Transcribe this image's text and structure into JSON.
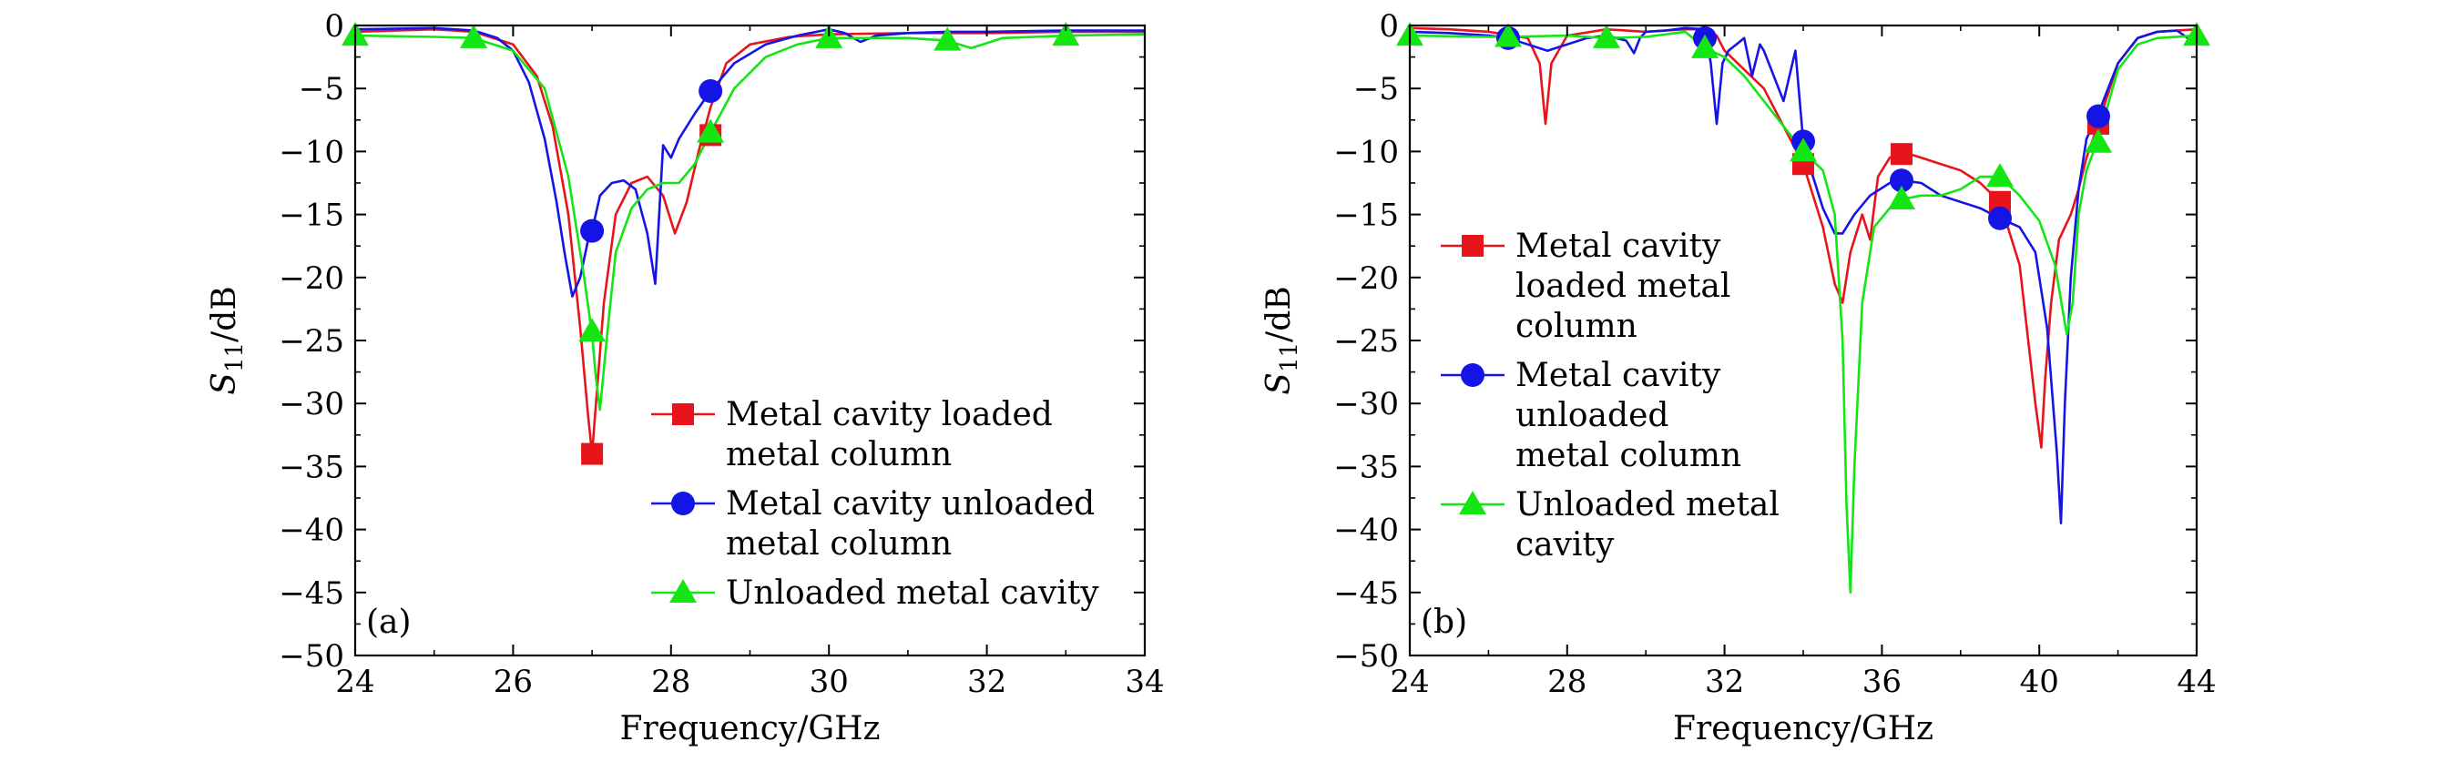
{
  "chart_data": [
    {
      "type": "line",
      "panel_label": "(a)",
      "xlabel": "Frequency/GHz",
      "ylabel": "S11/dB",
      "ylabel_main": "S",
      "ylabel_sub": "11",
      "ylabel_unit": "/dB",
      "xlim": [
        24,
        34
      ],
      "ylim": [
        -50,
        0
      ],
      "xticks": [
        24,
        26,
        28,
        30,
        32,
        34
      ],
      "yticks": [
        0,
        -5,
        -10,
        -15,
        -20,
        -25,
        -30,
        -35,
        -40,
        -45,
        -50
      ],
      "xtick_labels": [
        "24",
        "26",
        "28",
        "30",
        "32",
        "34"
      ],
      "ytick_labels": [
        "0",
        "−5",
        "−10",
        "−15",
        "−20",
        "−25",
        "−30",
        "−35",
        "−40",
        "−45",
        "−50"
      ],
      "legend_position": "lower-right",
      "series": [
        {
          "name": "Metal cavity loaded metal column",
          "legend_lines": [
            "Metal cavity loaded",
            "metal column"
          ],
          "color": "#e8141c",
          "marker": "square",
          "x": [
            24,
            25,
            25.5,
            26,
            26.3,
            26.5,
            26.7,
            26.85,
            26.95,
            27.0,
            27.05,
            27.15,
            27.3,
            27.5,
            27.7,
            27.9,
            28.05,
            28.2,
            28.35,
            28.5,
            28.7,
            29.0,
            29.5,
            30,
            31,
            32,
            33,
            34
          ],
          "values": [
            -0.5,
            -0.3,
            -0.5,
            -1.5,
            -4.0,
            -8.0,
            -15.0,
            -24.0,
            -31.0,
            -34.0,
            -30.0,
            -22.0,
            -15.0,
            -12.5,
            -12.0,
            -13.5,
            -16.5,
            -14.0,
            -10.0,
            -6.5,
            -3.0,
            -1.5,
            -0.9,
            -0.7,
            -0.6,
            -0.6,
            -0.5,
            -0.5
          ],
          "marker_x": [
            27.0,
            28.5
          ],
          "marker_y": [
            -34.0,
            -8.7
          ]
        },
        {
          "name": "Metal cavity unloaded metal column",
          "legend_lines": [
            "Metal cavity unloaded",
            "metal column"
          ],
          "color": "#1414e6",
          "marker": "circle",
          "x": [
            24,
            25,
            25.5,
            25.8,
            26.0,
            26.2,
            26.4,
            26.55,
            26.65,
            26.75,
            26.85,
            26.95,
            27.0,
            27.1,
            27.25,
            27.4,
            27.55,
            27.7,
            27.8,
            27.9,
            28.0,
            28.1,
            28.3,
            28.5,
            28.8,
            29.2,
            29.6,
            30.0,
            30.2,
            30.4,
            30.6,
            31.0,
            31.5,
            32.0,
            33.0,
            34.0
          ],
          "values": [
            -0.3,
            -0.2,
            -0.4,
            -1.0,
            -2.0,
            -4.5,
            -9.0,
            -14.0,
            -18.0,
            -21.5,
            -20.0,
            -17.0,
            -16.3,
            -13.5,
            -12.5,
            -12.3,
            -13.0,
            -16.5,
            -20.5,
            -9.5,
            -10.5,
            -9.0,
            -7.0,
            -5.2,
            -3.0,
            -1.5,
            -0.8,
            -0.3,
            -0.6,
            -1.3,
            -0.8,
            -0.6,
            -0.5,
            -0.5,
            -0.4,
            -0.4
          ],
          "marker_x": [
            27.0,
            28.5
          ],
          "marker_y": [
            -16.3,
            -5.2
          ]
        },
        {
          "name": "Unloaded metal cavity",
          "legend_lines": [
            "Unloaded metal cavity"
          ],
          "color": "#14e614",
          "marker": "triangle",
          "x": [
            24,
            25,
            25.5,
            26,
            26.4,
            26.7,
            26.9,
            27.0,
            27.05,
            27.1,
            27.2,
            27.3,
            27.5,
            27.7,
            27.9,
            28.1,
            28.3,
            28.5,
            28.8,
            29.2,
            29.6,
            30,
            30.5,
            31,
            31.5,
            31.8,
            32.2,
            33,
            34
          ],
          "values": [
            -0.8,
            -0.9,
            -1.0,
            -2.0,
            -5.0,
            -12.0,
            -20.0,
            -24.5,
            -28.0,
            -30.5,
            -24.0,
            -18.0,
            -14.5,
            -13.0,
            -12.5,
            -12.5,
            -11.0,
            -8.5,
            -5.0,
            -2.5,
            -1.5,
            -1.0,
            -1.0,
            -1.0,
            -1.2,
            -1.8,
            -1.0,
            -0.8,
            -0.7
          ],
          "marker_x": [
            24,
            25.5,
            27.0,
            28.5,
            30.0,
            31.5,
            33.0
          ],
          "marker_y": [
            -0.8,
            -1.0,
            -24.3,
            -8.5,
            -1.0,
            -1.2,
            -0.8
          ]
        }
      ]
    },
    {
      "type": "line",
      "panel_label": "(b)",
      "xlabel": "Frequency/GHz",
      "ylabel": "S11/dB",
      "ylabel_main": "S",
      "ylabel_sub": "11",
      "ylabel_unit": "/dB",
      "xlim": [
        24,
        44
      ],
      "ylim": [
        -50,
        0
      ],
      "xticks": [
        24,
        28,
        32,
        36,
        40,
        44
      ],
      "yticks": [
        0,
        -5,
        -10,
        -15,
        -20,
        -25,
        -30,
        -35,
        -40,
        -45,
        -50
      ],
      "xtick_labels": [
        "24",
        "28",
        "32",
        "36",
        "40",
        "44"
      ],
      "ytick_labels": [
        "0",
        "−5",
        "−10",
        "−15",
        "−20",
        "−25",
        "−30",
        "−35",
        "−40",
        "−45",
        "−50"
      ],
      "legend_position": "center-left",
      "series": [
        {
          "name": "Metal cavity loaded metal column",
          "legend_lines": [
            "Metal cavity",
            "loaded metal",
            "column"
          ],
          "color": "#e8141c",
          "marker": "square",
          "x": [
            24,
            25,
            26,
            27,
            27.3,
            27.45,
            27.6,
            28,
            29,
            30,
            31,
            31.5,
            31.8,
            32,
            33,
            34,
            34.5,
            34.8,
            35.0,
            35.2,
            35.5,
            35.7,
            35.9,
            36.2,
            36.5,
            37,
            37.5,
            38,
            38.5,
            39,
            39.5,
            39.9,
            40.05,
            40.15,
            40.3,
            40.5,
            40.8,
            41.0,
            41.2,
            41.5,
            42,
            42.5,
            43,
            44
          ],
          "values": [
            -0.2,
            -0.3,
            -0.5,
            -1.0,
            -3.0,
            -7.8,
            -3.0,
            -0.8,
            -0.3,
            -0.5,
            -0.3,
            -0.3,
            -0.8,
            -2.0,
            -5.0,
            -11.0,
            -16.0,
            -20.5,
            -22.0,
            -18.0,
            -15.0,
            -17.0,
            -12.0,
            -10.5,
            -10.0,
            -10.5,
            -11.0,
            -11.5,
            -12.5,
            -14.0,
            -19.0,
            -30.0,
            -33.5,
            -28.0,
            -22.0,
            -17.0,
            -15.0,
            -13.0,
            -10.5,
            -7.8,
            -3.0,
            -1.0,
            -0.5,
            -0.3
          ],
          "marker_x": [
            34.0,
            36.5,
            39.0,
            41.5
          ],
          "marker_y": [
            -11.0,
            -10.2,
            -14.0,
            -7.8
          ]
        },
        {
          "name": "Metal cavity unloaded metal column",
          "legend_lines": [
            "Metal cavity",
            "unloaded",
            "metal column"
          ],
          "color": "#1414e6",
          "marker": "circle",
          "x": [
            24,
            25,
            26,
            26.5,
            27,
            27.5,
            28,
            28.5,
            29,
            29.5,
            29.7,
            29.85,
            30,
            30.5,
            31,
            31.5,
            31.65,
            31.8,
            31.95,
            32.1,
            32.3,
            32.5,
            32.7,
            32.9,
            33,
            33.5,
            33.8,
            34.0,
            34.2,
            34.5,
            34.8,
            35,
            35.3,
            35.7,
            36.2,
            36.5,
            37,
            37.5,
            38,
            38.5,
            39,
            39.5,
            39.9,
            40.2,
            40.45,
            40.55,
            40.65,
            40.8,
            41.0,
            41.2,
            41.5,
            42,
            42.5,
            43,
            43.5,
            44
          ],
          "values": [
            -0.5,
            -0.6,
            -0.8,
            -1.0,
            -1.5,
            -2.0,
            -1.5,
            -1.0,
            -0.8,
            -1.2,
            -2.2,
            -1.0,
            -0.5,
            -0.4,
            -0.2,
            -0.3,
            -3.0,
            -7.8,
            -3.0,
            -2.0,
            -1.5,
            -1.0,
            -4.0,
            -1.5,
            -2.0,
            -6.0,
            -2.0,
            -9.2,
            -11.5,
            -14.5,
            -16.5,
            -16.5,
            -15.0,
            -13.5,
            -12.5,
            -12.3,
            -12.5,
            -13.5,
            -14.0,
            -14.5,
            -15.3,
            -16.0,
            -18.0,
            -24.0,
            -34.0,
            -39.5,
            -30.0,
            -20.0,
            -13.0,
            -9.0,
            -7.0,
            -3.0,
            -1.0,
            -0.5,
            -0.4,
            -1.5
          ],
          "marker_x": [
            26.5,
            31.5,
            34.0,
            36.5,
            39.0,
            41.5
          ],
          "marker_y": [
            -1.0,
            -1.0,
            -9.2,
            -12.3,
            -15.3,
            -7.2
          ]
        },
        {
          "name": "Unloaded metal cavity",
          "legend_lines": [
            "Unloaded metal",
            "cavity"
          ],
          "color": "#14e614",
          "marker": "triangle",
          "x": [
            24,
            26,
            26.5,
            28,
            29,
            30,
            31,
            31.5,
            32,
            32.5,
            33,
            33.5,
            34,
            34.5,
            34.8,
            35.0,
            35.1,
            35.2,
            35.3,
            35.5,
            35.8,
            36.2,
            36.5,
            37,
            37.5,
            38,
            38.5,
            39,
            39.5,
            40,
            40.4,
            40.7,
            40.85,
            41.0,
            41.2,
            41.5,
            42,
            42.5,
            43,
            44
          ],
          "values": [
            -0.8,
            -0.9,
            -0.9,
            -0.8,
            -1.0,
            -0.9,
            -0.5,
            -1.8,
            -2.5,
            -4.0,
            -6.0,
            -8.0,
            -10.0,
            -11.5,
            -15.0,
            -25.0,
            -38.0,
            -45.0,
            -35.0,
            -22.0,
            -16.0,
            -14.5,
            -13.8,
            -13.5,
            -13.5,
            -13.0,
            -12.0,
            -12.0,
            -13.5,
            -15.5,
            -19.0,
            -24.5,
            -22.0,
            -15.0,
            -11.5,
            -9.0,
            -3.5,
            -1.5,
            -1.0,
            -0.8
          ],
          "marker_x": [
            24,
            26.5,
            29.0,
            31.5,
            34.0,
            36.5,
            39.0,
            41.5,
            44.0
          ],
          "marker_y": [
            -0.8,
            -0.9,
            -1.0,
            -1.8,
            -10.0,
            -13.8,
            -12.0,
            -9.3,
            -0.8
          ]
        }
      ]
    }
  ]
}
